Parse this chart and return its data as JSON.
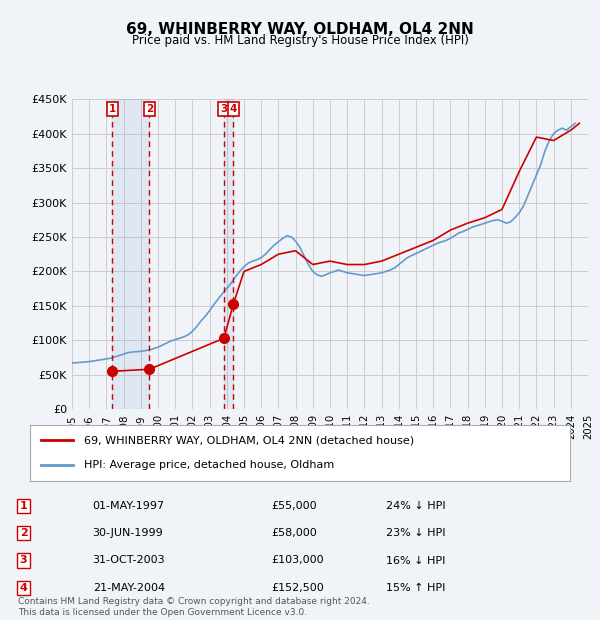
{
  "title": "69, WHINBERRY WAY, OLDHAM, OL4 2NN",
  "subtitle": "Price paid vs. HM Land Registry's House Price Index (HPI)",
  "ylabel": "",
  "ylim": [
    0,
    450000
  ],
  "yticks": [
    0,
    50000,
    100000,
    150000,
    200000,
    250000,
    300000,
    350000,
    400000,
    450000
  ],
  "ytick_labels": [
    "£0",
    "£50K",
    "£100K",
    "£150K",
    "£200K",
    "£250K",
    "£300K",
    "£350K",
    "£400K",
    "£450K"
  ],
  "background_color": "#f0f4f8",
  "plot_bg": "#ffffff",
  "grid_color": "#cccccc",
  "transactions": [
    {
      "date_num": 1997.33,
      "price": 55000,
      "label": "1",
      "arrow": "↓"
    },
    {
      "date_num": 1999.5,
      "price": 58000,
      "label": "2",
      "arrow": "↓"
    },
    {
      "date_num": 2003.83,
      "price": 103000,
      "label": "3",
      "arrow": "↓"
    },
    {
      "date_num": 2004.38,
      "price": 152500,
      "label": "4",
      "arrow": "↑"
    }
  ],
  "transaction_color": "#cc0000",
  "hpi_color": "#6699cc",
  "legend_line1": "69, WHINBERRY WAY, OLDHAM, OL4 2NN (detached house)",
  "legend_line2": "HPI: Average price, detached house, Oldham",
  "table_rows": [
    {
      "num": "1",
      "date": "01-MAY-1997",
      "price": "£55,000",
      "pct": "24% ↓ HPI"
    },
    {
      "num": "2",
      "date": "30-JUN-1999",
      "price": "£58,000",
      "pct": "23% ↓ HPI"
    },
    {
      "num": "3",
      "date": "31-OCT-2003",
      "price": "£103,000",
      "pct": "16% ↓ HPI"
    },
    {
      "num": "4",
      "date": "21-MAY-2004",
      "price": "£152,500",
      "pct": "15% ↑ HPI"
    }
  ],
  "footer": "Contains HM Land Registry data © Crown copyright and database right 2024.\nThis data is licensed under the Open Government Licence v3.0.",
  "hpi_data": {
    "years": [
      1995.0,
      1995.25,
      1995.5,
      1995.75,
      1996.0,
      1996.25,
      1996.5,
      1996.75,
      1997.0,
      1997.25,
      1997.5,
      1997.75,
      1998.0,
      1998.25,
      1998.5,
      1998.75,
      1999.0,
      1999.25,
      1999.5,
      1999.75,
      2000.0,
      2000.25,
      2000.5,
      2000.75,
      2001.0,
      2001.25,
      2001.5,
      2001.75,
      2002.0,
      2002.25,
      2002.5,
      2002.75,
      2003.0,
      2003.25,
      2003.5,
      2003.75,
      2004.0,
      2004.25,
      2004.5,
      2004.75,
      2005.0,
      2005.25,
      2005.5,
      2005.75,
      2006.0,
      2006.25,
      2006.5,
      2006.75,
      2007.0,
      2007.25,
      2007.5,
      2007.75,
      2008.0,
      2008.25,
      2008.5,
      2008.75,
      2009.0,
      2009.25,
      2009.5,
      2009.75,
      2010.0,
      2010.25,
      2010.5,
      2010.75,
      2011.0,
      2011.25,
      2011.5,
      2011.75,
      2012.0,
      2012.25,
      2012.5,
      2012.75,
      2013.0,
      2013.25,
      2013.5,
      2013.75,
      2014.0,
      2014.25,
      2014.5,
      2014.75,
      2015.0,
      2015.25,
      2015.5,
      2015.75,
      2016.0,
      2016.25,
      2016.5,
      2016.75,
      2017.0,
      2017.25,
      2017.5,
      2017.75,
      2018.0,
      2018.25,
      2018.5,
      2018.75,
      2019.0,
      2019.25,
      2019.5,
      2019.75,
      2020.0,
      2020.25,
      2020.5,
      2020.75,
      2021.0,
      2021.25,
      2021.5,
      2021.75,
      2022.0,
      2022.25,
      2022.5,
      2022.75,
      2023.0,
      2023.25,
      2023.5,
      2023.75,
      2024.0,
      2024.25
    ],
    "values": [
      67000,
      67500,
      68000,
      68500,
      69000,
      70000,
      71000,
      72000,
      73000,
      74000,
      76000,
      78000,
      80000,
      82000,
      83000,
      83500,
      84000,
      85000,
      86000,
      88000,
      90000,
      93000,
      96000,
      99000,
      101000,
      103000,
      105000,
      108000,
      113000,
      120000,
      128000,
      135000,
      143000,
      152000,
      160000,
      168000,
      175000,
      183000,
      192000,
      200000,
      207000,
      212000,
      215000,
      217000,
      220000,
      225000,
      232000,
      238000,
      243000,
      248000,
      252000,
      250000,
      244000,
      235000,
      222000,
      210000,
      200000,
      195000,
      193000,
      195000,
      198000,
      200000,
      202000,
      200000,
      198000,
      197000,
      196000,
      195000,
      194000,
      195000,
      196000,
      197000,
      198000,
      200000,
      202000,
      205000,
      210000,
      215000,
      220000,
      223000,
      226000,
      229000,
      232000,
      235000,
      238000,
      241000,
      243000,
      245000,
      248000,
      252000,
      256000,
      258000,
      261000,
      264000,
      266000,
      268000,
      270000,
      272000,
      274000,
      275000,
      273000,
      270000,
      272000,
      278000,
      285000,
      295000,
      310000,
      325000,
      340000,
      355000,
      375000,
      390000,
      400000,
      405000,
      408000,
      405000,
      410000,
      415000
    ]
  },
  "sold_line_data": {
    "years": [
      1997.33,
      1999.5,
      2003.83,
      2004.38,
      2005.0,
      2006.0,
      2007.0,
      2008.0,
      2009.0,
      2010.0,
      2011.0,
      2012.0,
      2013.0,
      2014.0,
      2015.0,
      2016.0,
      2017.0,
      2018.0,
      2019.0,
      2020.0,
      2021.0,
      2022.0,
      2023.0,
      2024.0,
      2024.5
    ],
    "values": [
      55000,
      58000,
      103000,
      152500,
      200000,
      210000,
      225000,
      230000,
      210000,
      215000,
      210000,
      210000,
      215000,
      225000,
      235000,
      245000,
      260000,
      270000,
      278000,
      290000,
      345000,
      395000,
      390000,
      405000,
      415000
    ]
  },
  "xmin": 1995.0,
  "xmax": 2025.0,
  "xticks": [
    1995,
    1996,
    1997,
    1998,
    1999,
    2000,
    2001,
    2002,
    2003,
    2004,
    2005,
    2006,
    2007,
    2008,
    2009,
    2010,
    2011,
    2012,
    2013,
    2014,
    2015,
    2016,
    2017,
    2018,
    2019,
    2020,
    2021,
    2022,
    2023,
    2024,
    2025
  ],
  "vline_pairs": [
    [
      1997.33,
      1999.5
    ],
    [
      2003.83,
      2004.38
    ]
  ],
  "vshade_alpha": 0.12
}
